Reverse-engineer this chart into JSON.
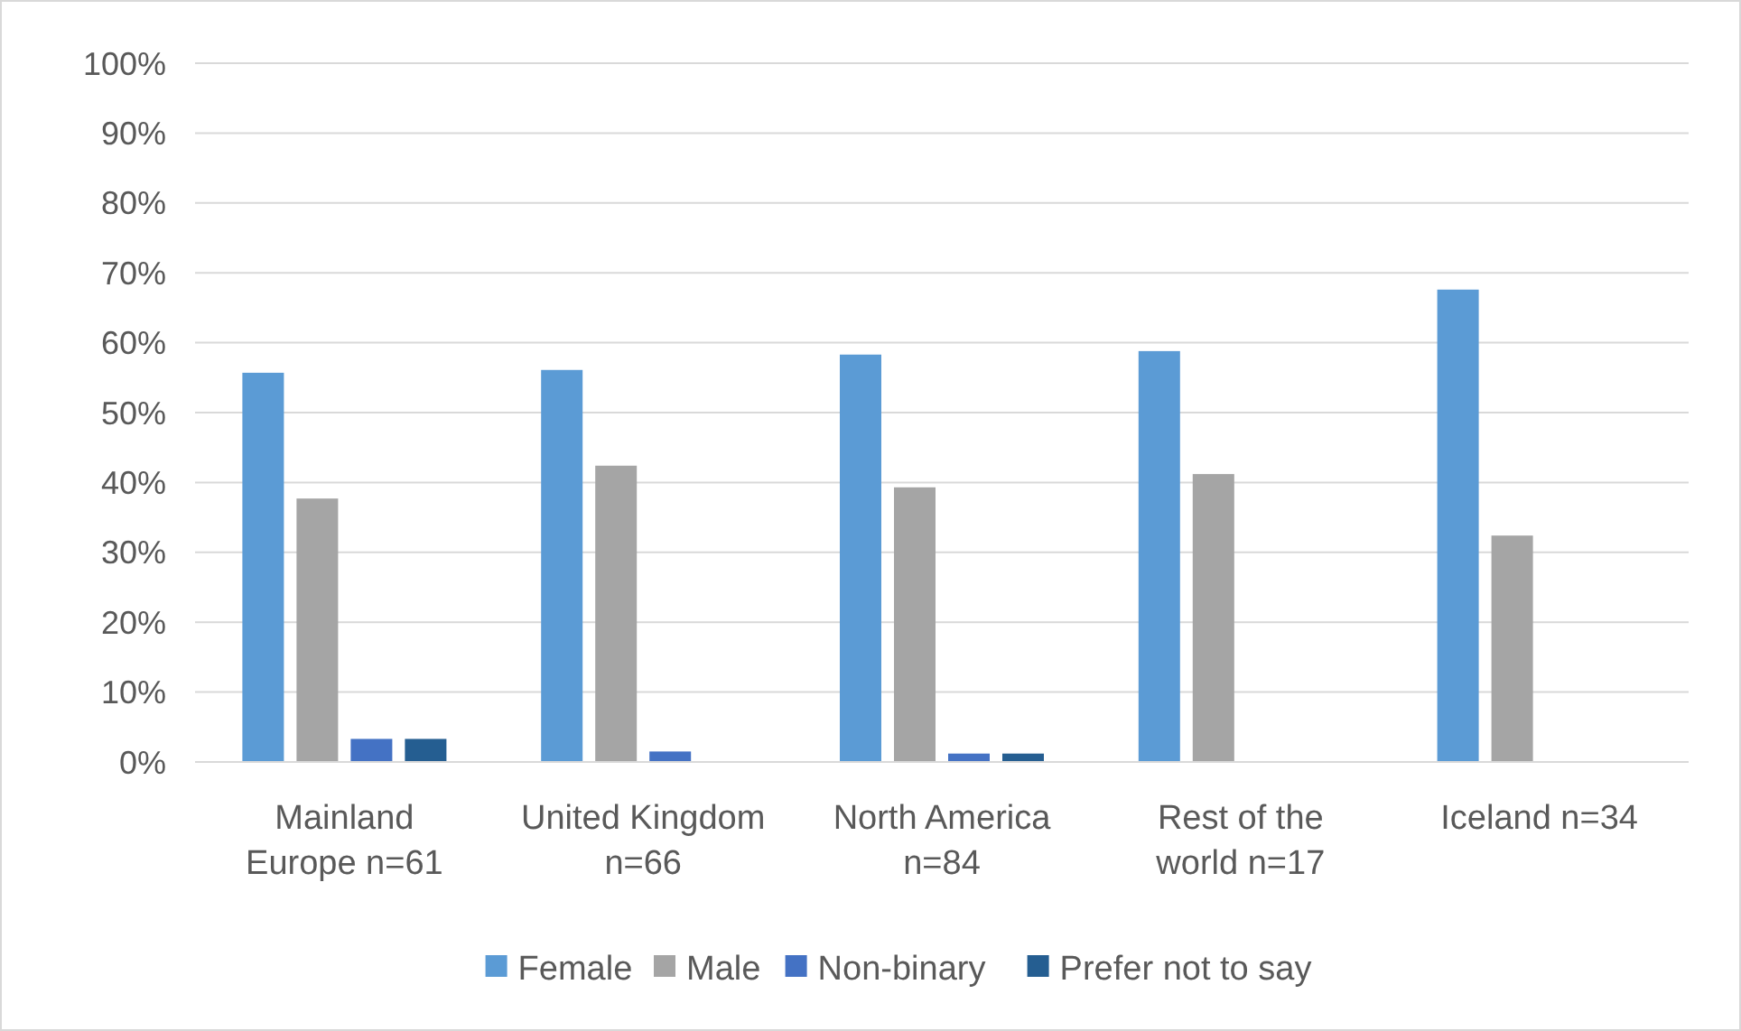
{
  "chart_data": {
    "type": "bar",
    "categories": [
      "Mainland Europe n=61",
      "United Kingdom n=66",
      "North America n=84",
      "Rest of the world n=17",
      "Iceland n=34"
    ],
    "series": [
      {
        "name": "Female",
        "color": "#5b9bd5",
        "values": [
          55.7,
          56.1,
          58.3,
          58.8,
          67.6
        ]
      },
      {
        "name": "Male",
        "color": "#a5a5a5",
        "values": [
          37.7,
          42.4,
          39.3,
          41.2,
          32.4
        ]
      },
      {
        "name": "Non-binary",
        "color": "#4472c4",
        "values": [
          3.3,
          1.5,
          1.2,
          0,
          0
        ]
      },
      {
        "name": "Prefer not to say",
        "color": "#255e91",
        "values": [
          3.3,
          0,
          1.2,
          0,
          0
        ]
      }
    ],
    "ylim": [
      0,
      100
    ],
    "yticks": [
      {
        "value": 0,
        "label": "0%"
      },
      {
        "value": 10,
        "label": "10%"
      },
      {
        "value": 20,
        "label": "20%"
      },
      {
        "value": 30,
        "label": "30%"
      },
      {
        "value": 40,
        "label": "40%"
      },
      {
        "value": 50,
        "label": "50%"
      },
      {
        "value": 60,
        "label": "60%"
      },
      {
        "value": 70,
        "label": "70%"
      },
      {
        "value": 80,
        "label": "80%"
      },
      {
        "value": 90,
        "label": "90%"
      },
      {
        "value": 100,
        "label": "100%"
      }
    ],
    "grid": "y",
    "legend": "bottom"
  }
}
